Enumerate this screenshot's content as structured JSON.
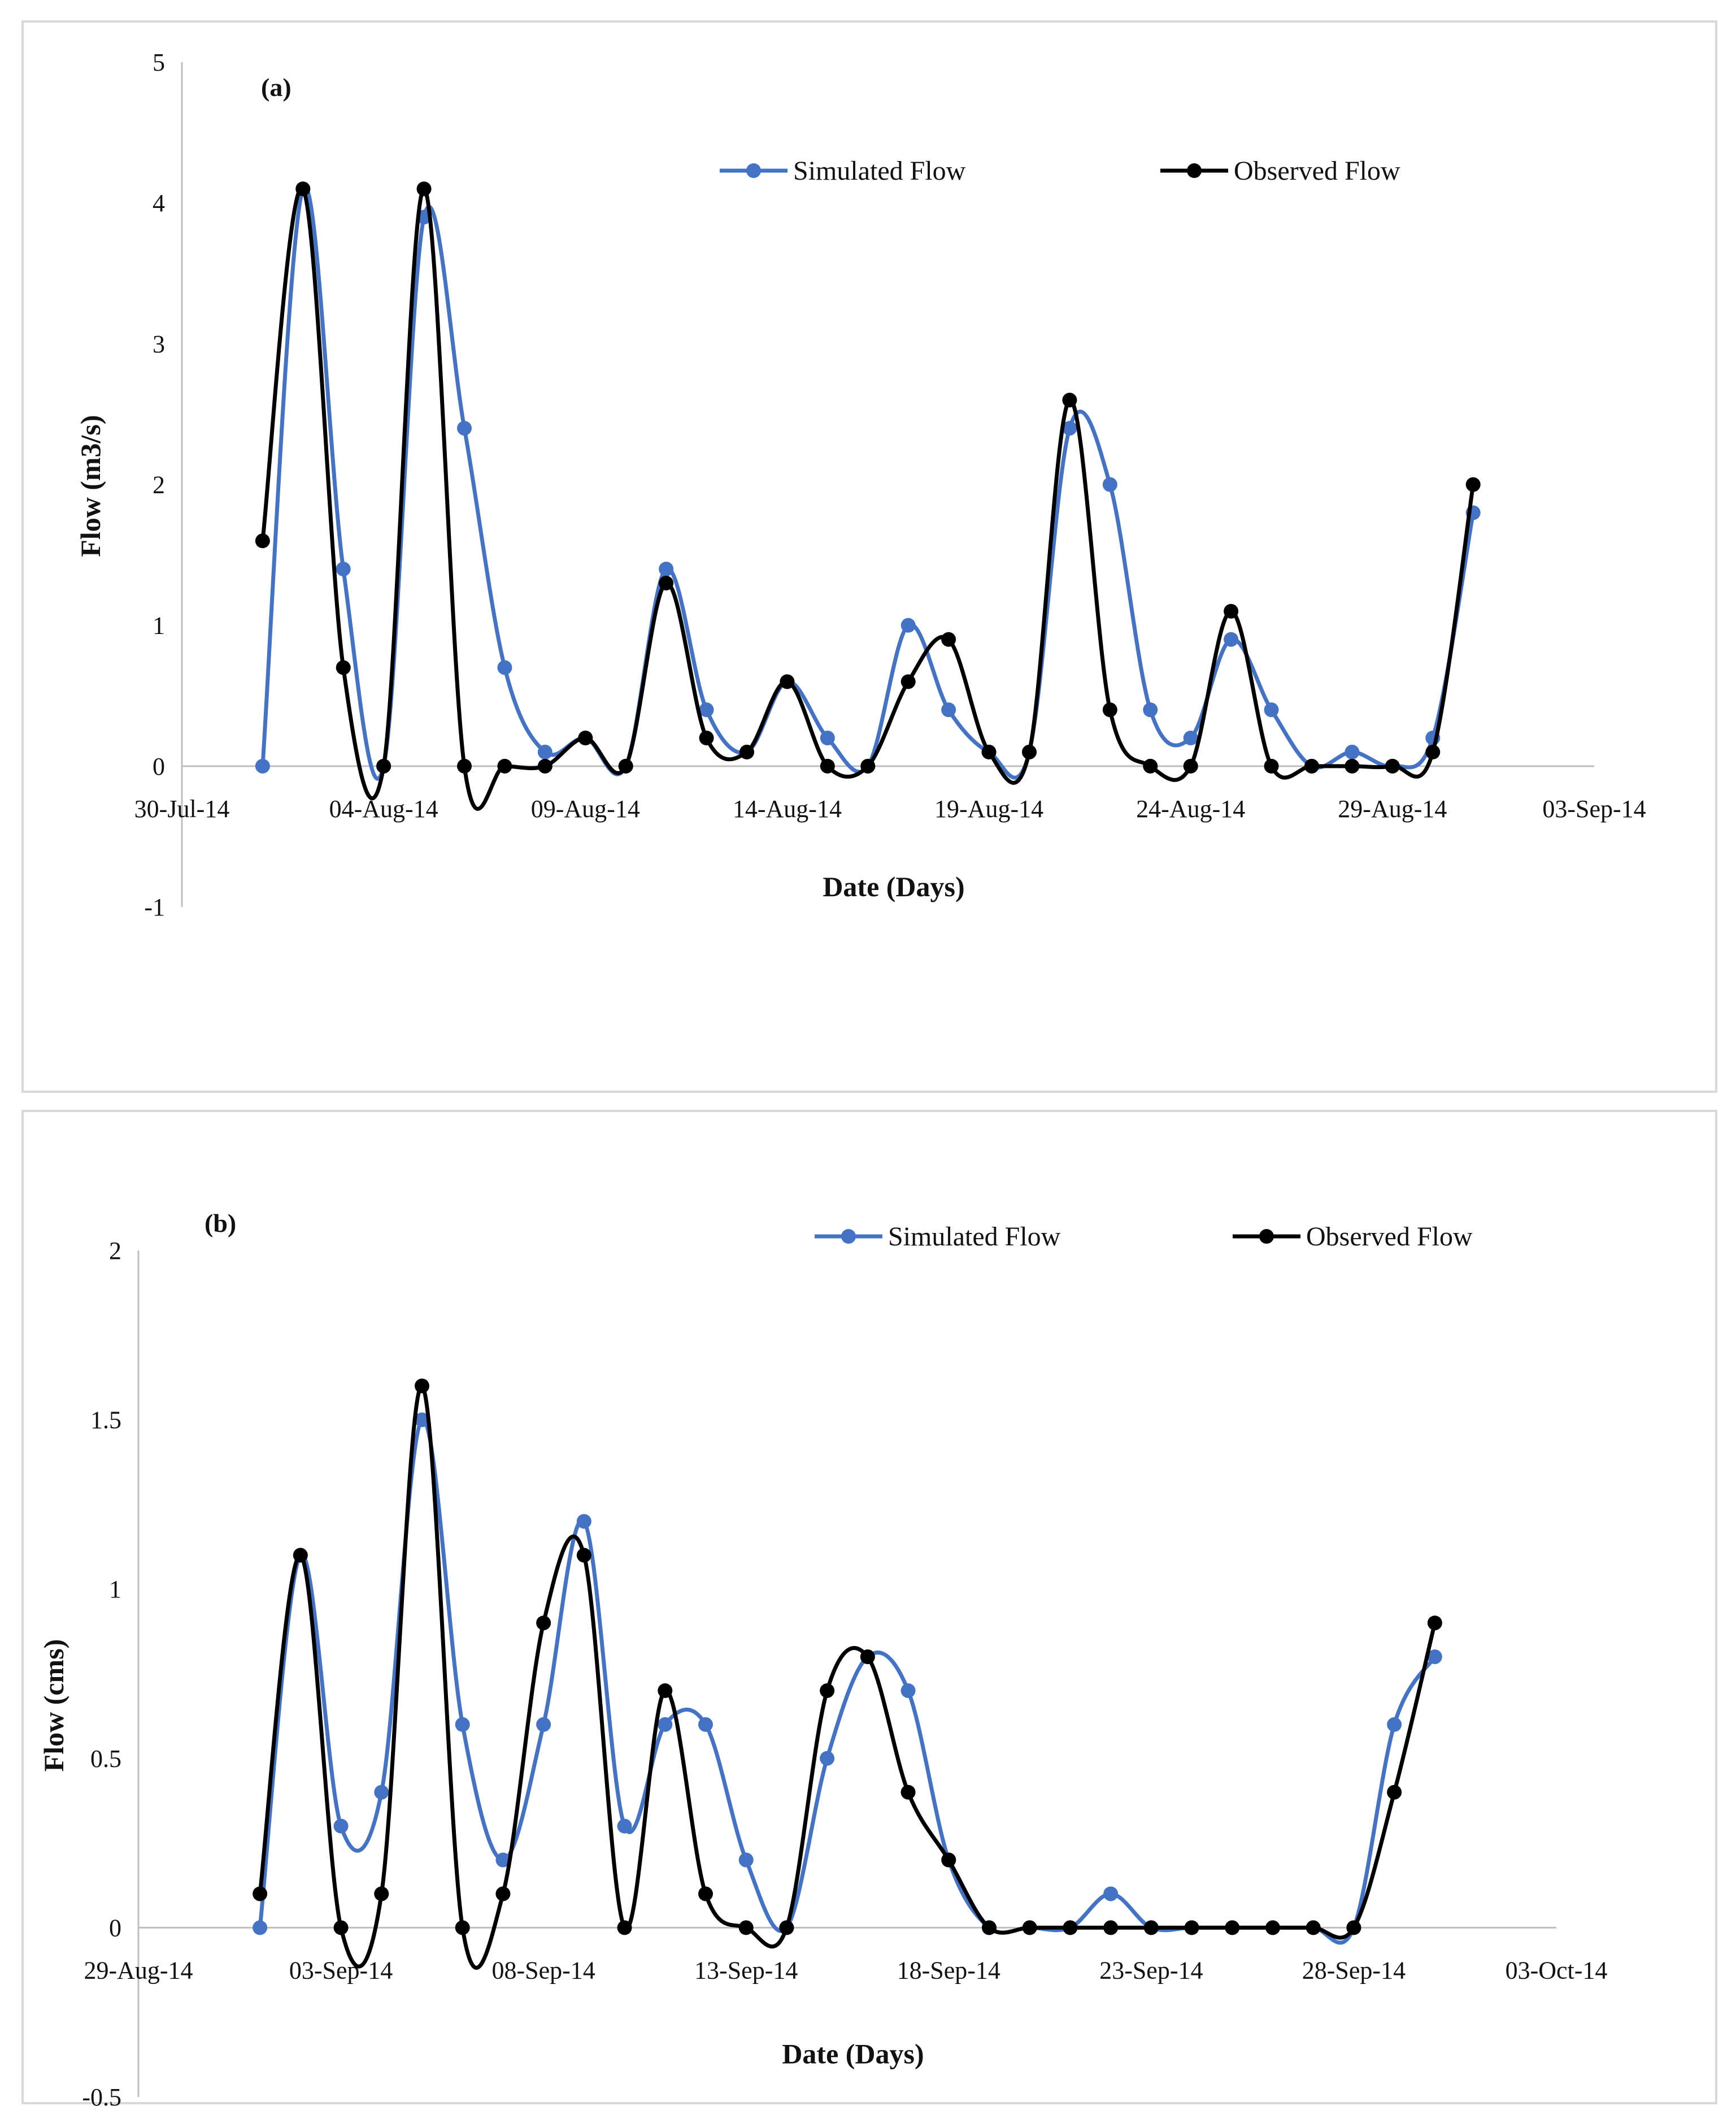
{
  "chart_data": [
    {
      "type": "line",
      "panel_label": "(a)",
      "xlabel": "Date (Days)",
      "ylabel": "Flow (m3/s)",
      "ylim": [
        -1,
        5
      ],
      "yticks": [
        "-1",
        "0",
        "1",
        "2",
        "3",
        "4",
        "5"
      ],
      "x_start_date": "2014-07-30",
      "x_tick_labels": [
        "30-Jul-14",
        "04-Aug-14",
        "09-Aug-14",
        "14-Aug-14",
        "19-Aug-14",
        "24-Aug-14",
        "29-Aug-14",
        "03-Sep-14"
      ],
      "x_tick_days": [
        0,
        5,
        10,
        15,
        20,
        25,
        30,
        35
      ],
      "x_range_days": [
        0,
        35
      ],
      "legend_position": "top-right",
      "series": [
        {
          "name": "Simulated Flow",
          "color": "#4472c4",
          "x_days": [
            2,
            3,
            4,
            5,
            6,
            7,
            8,
            9,
            10,
            11,
            12,
            13,
            14,
            15,
            16,
            17,
            18,
            19,
            20,
            21,
            22,
            23,
            24,
            25,
            26,
            27,
            28,
            29,
            30,
            31,
            32
          ],
          "values": [
            0,
            4.1,
            1.4,
            0,
            3.9,
            2.4,
            0.7,
            0.1,
            0.2,
            0,
            1.4,
            0.4,
            0.1,
            0.6,
            0.2,
            0,
            1.0,
            0.4,
            0.1,
            0.1,
            2.4,
            2.0,
            0.4,
            0.2,
            0.9,
            0.4,
            0,
            0.1,
            0,
            0.2,
            1.8
          ]
        },
        {
          "name": "Observed Flow",
          "color": "#000000",
          "x_days": [
            2,
            3,
            4,
            5,
            6,
            7,
            8,
            9,
            10,
            11,
            12,
            13,
            14,
            15,
            16,
            17,
            18,
            19,
            20,
            21,
            22,
            23,
            24,
            25,
            26,
            27,
            28,
            29,
            30,
            31,
            32
          ],
          "values": [
            1.6,
            4.1,
            0.7,
            0,
            4.1,
            0,
            0,
            0,
            0.2,
            0,
            1.3,
            0.2,
            0.1,
            0.6,
            0,
            0,
            0.6,
            0.9,
            0.1,
            0.1,
            2.6,
            0.4,
            0,
            0,
            1.1,
            0,
            0,
            0,
            0,
            0.1,
            2.0
          ]
        }
      ]
    },
    {
      "type": "line",
      "panel_label": "(b)",
      "xlabel": "Date (Days)",
      "ylabel": "Flow (cms)",
      "ylim": [
        -0.5,
        2
      ],
      "yticks": [
        "-0.5",
        "0",
        "0.5",
        "1",
        "1.5",
        "2"
      ],
      "x_start_date": "2014-08-29",
      "x_tick_labels": [
        "29-Aug-14",
        "03-Sep-14",
        "08-Sep-14",
        "13-Sep-14",
        "18-Sep-14",
        "23-Sep-14",
        "28-Sep-14",
        "03-Oct-14"
      ],
      "x_tick_days": [
        0,
        5,
        10,
        15,
        20,
        25,
        30,
        35
      ],
      "x_range_days": [
        0,
        35
      ],
      "legend_position": "top-right",
      "series": [
        {
          "name": "Simulated Flow",
          "color": "#4472c4",
          "x_days": [
            3,
            4,
            5,
            6,
            7,
            8,
            9,
            10,
            11,
            12,
            13,
            14,
            15,
            16,
            17,
            18,
            19,
            20,
            21,
            22,
            23,
            24,
            25,
            26,
            27,
            28,
            29,
            30,
            31,
            32
          ],
          "values": [
            0,
            1.1,
            0.3,
            0.4,
            1.5,
            0.6,
            0.2,
            0.6,
            1.2,
            0.3,
            0.6,
            0.6,
            0.2,
            0,
            0.5,
            0.8,
            0.7,
            0.2,
            0,
            0,
            0,
            0.1,
            0,
            0,
            0,
            0,
            0,
            0,
            0.6,
            0.8
          ]
        },
        {
          "name": "Observed Flow",
          "color": "#000000",
          "x_days": [
            3,
            4,
            5,
            6,
            7,
            8,
            9,
            10,
            11,
            12,
            13,
            14,
            15,
            16,
            17,
            18,
            19,
            20,
            21,
            22,
            23,
            24,
            25,
            26,
            27,
            28,
            29,
            30,
            31,
            32
          ],
          "values": [
            0.1,
            1.1,
            0,
            0.1,
            1.6,
            0,
            0.1,
            0.9,
            1.1,
            0,
            0.7,
            0.1,
            0,
            0,
            0.7,
            0.8,
            0.4,
            0.2,
            0,
            0,
            0,
            0,
            0,
            0,
            0,
            0,
            0,
            0,
            0.4,
            0.9
          ]
        }
      ]
    }
  ]
}
